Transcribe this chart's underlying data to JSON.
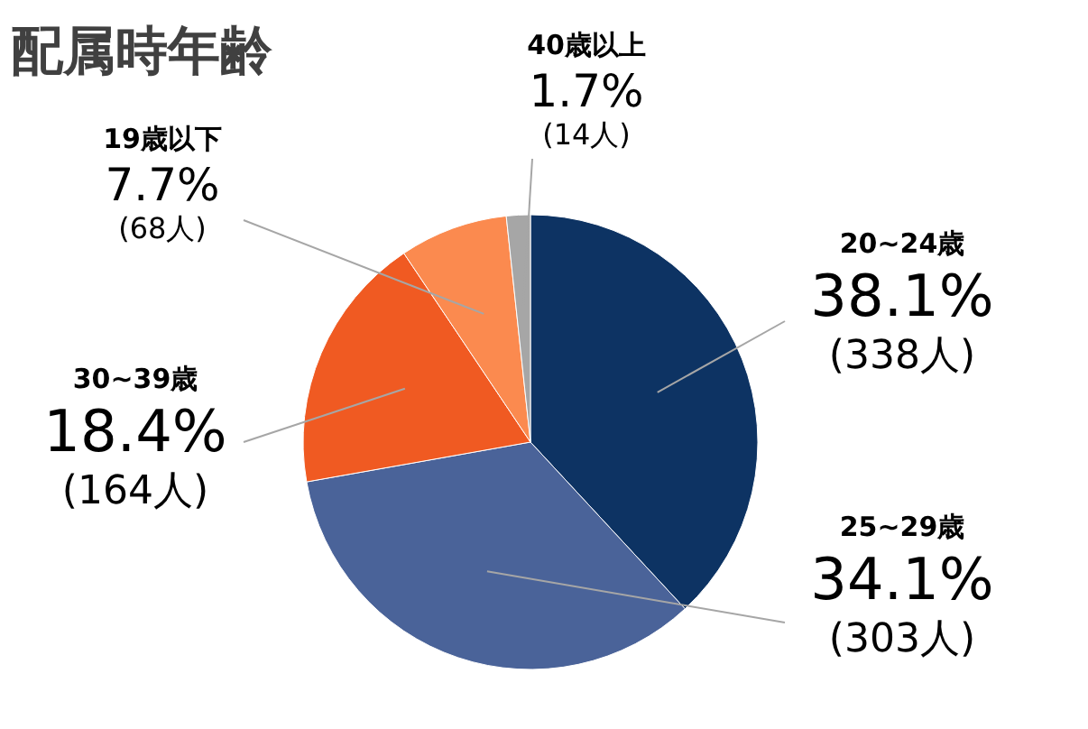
{
  "chart_data": {
    "type": "pie",
    "title": "配属時年齢",
    "categories": [
      "20~24歳",
      "25~29歳",
      "30~39歳",
      "19歳以下",
      "40歳以上"
    ],
    "values": [
      38.1,
      34.1,
      18.4,
      7.7,
      1.7
    ],
    "colors": [
      "#0d3363",
      "#4a6399",
      "#f05a22",
      "#fb8a4f",
      "#a6a6a6"
    ],
    "value_labels": [
      "38.1%\n(338人)",
      "34.1%\n(303人)",
      "18.4%\n(164人)",
      "7.7%\n(68人)",
      "1.7%\n(14人)"
    ]
  }
}
